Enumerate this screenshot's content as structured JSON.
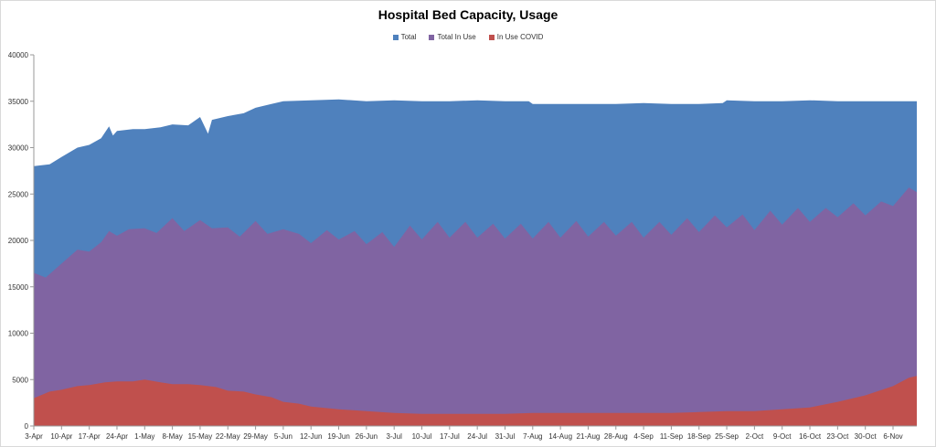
{
  "chart_data": {
    "type": "area",
    "title": "Hospital Bed Capacity, Usage",
    "xlabel": "",
    "ylabel": "",
    "ylim": [
      0,
      40000
    ],
    "yticks": [
      0,
      5000,
      10000,
      15000,
      20000,
      25000,
      30000,
      35000,
      40000
    ],
    "xtick_labels": [
      "3-Apr",
      "10-Apr",
      "17-Apr",
      "24-Apr",
      "1-May",
      "8-May",
      "15-May",
      "22-May",
      "29-May",
      "5-Jun",
      "12-Jun",
      "19-Jun",
      "26-Jun",
      "3-Jul",
      "10-Jul",
      "17-Jul",
      "24-Jul",
      "31-Jul",
      "7-Aug",
      "14-Aug",
      "21-Aug",
      "28-Aug",
      "4-Sep",
      "11-Sep",
      "18-Sep",
      "25-Sep",
      "2-Oct",
      "9-Oct",
      "16-Oct",
      "23-Oct",
      "30-Oct",
      "6-Nov"
    ],
    "legend_position": "top",
    "grid": false,
    "series": [
      {
        "name": "Total",
        "color": "#4f81bd",
        "points": [
          [
            "3-Apr",
            28000
          ],
          [
            "7-Apr",
            28200
          ],
          [
            "10-Apr",
            29000
          ],
          [
            "14-Apr",
            30000
          ],
          [
            "17-Apr",
            30300
          ],
          [
            "20-Apr",
            31000
          ],
          [
            "22-Apr",
            32300
          ],
          [
            "23-Apr",
            31300
          ],
          [
            "24-Apr",
            31800
          ],
          [
            "28-Apr",
            32000
          ],
          [
            "1-May",
            32000
          ],
          [
            "5-May",
            32200
          ],
          [
            "8-May",
            32500
          ],
          [
            "12-May",
            32400
          ],
          [
            "15-May",
            33300
          ],
          [
            "17-May",
            31500
          ],
          [
            "18-May",
            33000
          ],
          [
            "22-May",
            33400
          ],
          [
            "26-May",
            33700
          ],
          [
            "29-May",
            34300
          ],
          [
            "2-Jun",
            34700
          ],
          [
            "5-Jun",
            35000
          ],
          [
            "12-Jun",
            35100
          ],
          [
            "19-Jun",
            35200
          ],
          [
            "26-Jun",
            35000
          ],
          [
            "3-Jul",
            35100
          ],
          [
            "10-Jul",
            35000
          ],
          [
            "17-Jul",
            35000
          ],
          [
            "24-Jul",
            35100
          ],
          [
            "31-Jul",
            35000
          ],
          [
            "6-Aug",
            35000
          ],
          [
            "7-Aug",
            34700
          ],
          [
            "14-Aug",
            34700
          ],
          [
            "21-Aug",
            34700
          ],
          [
            "28-Aug",
            34700
          ],
          [
            "4-Sep",
            34800
          ],
          [
            "11-Sep",
            34700
          ],
          [
            "18-Sep",
            34700
          ],
          [
            "24-Sep",
            34800
          ],
          [
            "25-Sep",
            35100
          ],
          [
            "2-Oct",
            35000
          ],
          [
            "9-Oct",
            35000
          ],
          [
            "16-Oct",
            35100
          ],
          [
            "23-Oct",
            35000
          ],
          [
            "30-Oct",
            35000
          ],
          [
            "6-Nov",
            35000
          ],
          [
            "12-Nov",
            35000
          ]
        ]
      },
      {
        "name": "Total In Use",
        "color": "#8064a2",
        "points": [
          [
            "3-Apr",
            16500
          ],
          [
            "6-Apr",
            16000
          ],
          [
            "10-Apr",
            17500
          ],
          [
            "14-Apr",
            19000
          ],
          [
            "17-Apr",
            18800
          ],
          [
            "20-Apr",
            19800
          ],
          [
            "22-Apr",
            21000
          ],
          [
            "24-Apr",
            20500
          ],
          [
            "27-Apr",
            21200
          ],
          [
            "1-May",
            21300
          ],
          [
            "4-May",
            20800
          ],
          [
            "8-May",
            22400
          ],
          [
            "11-May",
            21000
          ],
          [
            "15-May",
            22200
          ],
          [
            "18-May",
            21300
          ],
          [
            "22-May",
            21400
          ],
          [
            "25-May",
            20400
          ],
          [
            "29-May",
            22100
          ],
          [
            "1-Jun",
            20700
          ],
          [
            "5-Jun",
            21200
          ],
          [
            "9-Jun",
            20700
          ],
          [
            "12-Jun",
            19700
          ],
          [
            "16-Jun",
            21100
          ],
          [
            "19-Jun",
            20100
          ],
          [
            "23-Jun",
            21000
          ],
          [
            "26-Jun",
            19600
          ],
          [
            "30-Jun",
            20900
          ],
          [
            "3-Jul",
            19300
          ],
          [
            "7-Jul",
            21600
          ],
          [
            "10-Jul",
            20100
          ],
          [
            "14-Jul",
            22000
          ],
          [
            "17-Jul",
            20300
          ],
          [
            "21-Jul",
            22000
          ],
          [
            "24-Jul",
            20300
          ],
          [
            "28-Jul",
            21800
          ],
          [
            "31-Jul",
            20200
          ],
          [
            "4-Aug",
            21800
          ],
          [
            "7-Aug",
            20200
          ],
          [
            "11-Aug",
            22000
          ],
          [
            "14-Aug",
            20300
          ],
          [
            "18-Aug",
            22100
          ],
          [
            "21-Aug",
            20400
          ],
          [
            "25-Aug",
            22000
          ],
          [
            "28-Aug",
            20500
          ],
          [
            "1-Sep",
            22000
          ],
          [
            "4-Sep",
            20300
          ],
          [
            "8-Sep",
            22000
          ],
          [
            "11-Sep",
            20600
          ],
          [
            "15-Sep",
            22400
          ],
          [
            "18-Sep",
            20900
          ],
          [
            "22-Sep",
            22700
          ],
          [
            "25-Sep",
            21400
          ],
          [
            "29-Sep",
            22800
          ],
          [
            "2-Oct",
            21100
          ],
          [
            "6-Oct",
            23200
          ],
          [
            "9-Oct",
            21700
          ],
          [
            "13-Oct",
            23500
          ],
          [
            "16-Oct",
            22000
          ],
          [
            "20-Oct",
            23500
          ],
          [
            "23-Oct",
            22500
          ],
          [
            "27-Oct",
            24000
          ],
          [
            "30-Oct",
            22700
          ],
          [
            "3-Nov",
            24200
          ],
          [
            "6-Nov",
            23700
          ],
          [
            "10-Nov",
            25700
          ],
          [
            "12-Nov",
            25200
          ]
        ]
      },
      {
        "name": "In Use COVID",
        "color": "#c0504d",
        "points": [
          [
            "3-Apr",
            3000
          ],
          [
            "7-Apr",
            3700
          ],
          [
            "10-Apr",
            3900
          ],
          [
            "14-Apr",
            4300
          ],
          [
            "17-Apr",
            4400
          ],
          [
            "21-Apr",
            4700
          ],
          [
            "24-Apr",
            4800
          ],
          [
            "28-Apr",
            4800
          ],
          [
            "1-May",
            5000
          ],
          [
            "5-May",
            4700
          ],
          [
            "8-May",
            4500
          ],
          [
            "12-May",
            4500
          ],
          [
            "15-May",
            4400
          ],
          [
            "19-May",
            4200
          ],
          [
            "22-May",
            3800
          ],
          [
            "26-May",
            3700
          ],
          [
            "29-May",
            3400
          ],
          [
            "2-Jun",
            3100
          ],
          [
            "5-Jun",
            2600
          ],
          [
            "9-Jun",
            2400
          ],
          [
            "12-Jun",
            2100
          ],
          [
            "19-Jun",
            1800
          ],
          [
            "26-Jun",
            1600
          ],
          [
            "3-Jul",
            1400
          ],
          [
            "10-Jul",
            1300
          ],
          [
            "17-Jul",
            1300
          ],
          [
            "24-Jul",
            1300
          ],
          [
            "31-Jul",
            1300
          ],
          [
            "7-Aug",
            1400
          ],
          [
            "14-Aug",
            1400
          ],
          [
            "21-Aug",
            1400
          ],
          [
            "28-Aug",
            1400
          ],
          [
            "4-Sep",
            1400
          ],
          [
            "11-Sep",
            1400
          ],
          [
            "18-Sep",
            1500
          ],
          [
            "25-Sep",
            1600
          ],
          [
            "2-Oct",
            1600
          ],
          [
            "9-Oct",
            1800
          ],
          [
            "16-Oct",
            2000
          ],
          [
            "23-Oct",
            2600
          ],
          [
            "30-Oct",
            3300
          ],
          [
            "6-Nov",
            4300
          ],
          [
            "10-Nov",
            5200
          ],
          [
            "12-Nov",
            5400
          ]
        ]
      }
    ]
  }
}
